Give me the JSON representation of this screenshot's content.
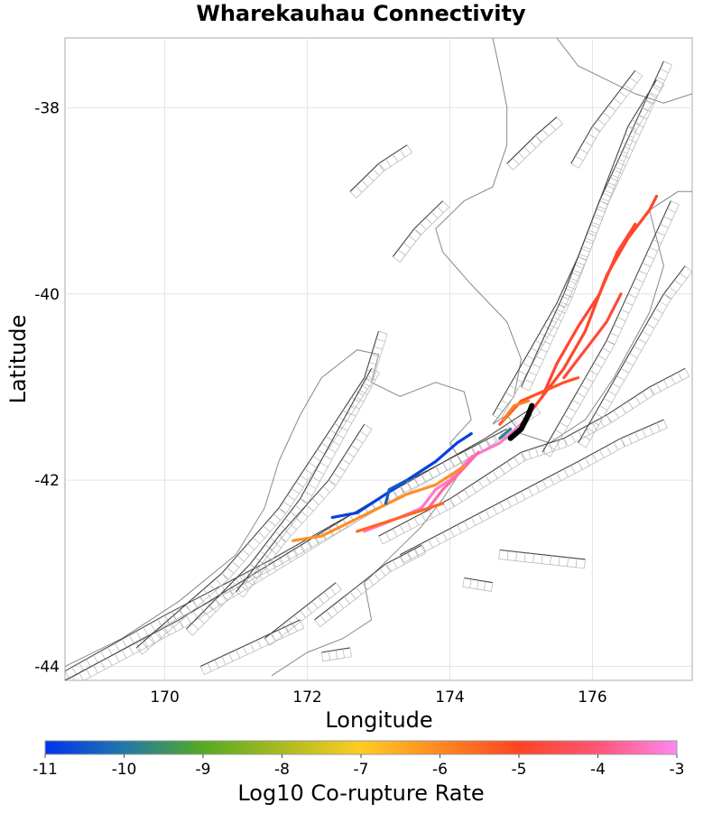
{
  "chart_data": {
    "type": "map",
    "title": "Wharekauhau Connectivity",
    "xlabel": "Longitude",
    "ylabel": "Latitude",
    "xlim": [
      168.6,
      177.4
    ],
    "ylim": [
      -44.15,
      -37.25
    ],
    "x_ticks": [
      170,
      172,
      174,
      176
    ],
    "y_ticks": [
      -38,
      -40,
      -42,
      -44
    ],
    "grid": true,
    "colorbar": {
      "label": "Log10 Co-rupture Rate",
      "min": -11,
      "max": -3,
      "ticks": [
        -11,
        -10,
        -9,
        -8,
        -7,
        -6,
        -5,
        -4,
        -3
      ],
      "colors": [
        "#0033ee",
        "#2277aa",
        "#55aa22",
        "#aabb22",
        "#ffcc22",
        "#ff8822",
        "#ff4422",
        "#ff5577",
        "#ff88ee"
      ]
    },
    "target_fault": {
      "name": "Wharekauhau",
      "color": "#000000",
      "points": [
        [
          174.85,
          -41.55
        ],
        [
          175.0,
          -41.45
        ],
        [
          175.1,
          -41.3
        ],
        [
          175.15,
          -41.2
        ]
      ]
    },
    "corupture_faults": [
      {
        "log10_rate": -3.3,
        "points": [
          [
            172.8,
            -42.55
          ],
          [
            173.3,
            -42.4
          ],
          [
            173.6,
            -42.3
          ],
          [
            173.8,
            -42.1
          ],
          [
            174.0,
            -42.0
          ],
          [
            174.3,
            -41.75
          ],
          [
            174.7,
            -41.6
          ],
          [
            175.0,
            -41.4
          ]
        ]
      },
      {
        "log10_rate": -3.6,
        "points": [
          [
            173.7,
            -42.3
          ],
          [
            173.9,
            -42.1
          ],
          [
            174.1,
            -41.95
          ],
          [
            174.4,
            -41.7
          ]
        ]
      },
      {
        "log10_rate": -4.9,
        "points": [
          [
            175.0,
            -41.4
          ],
          [
            175.3,
            -41.1
          ],
          [
            175.6,
            -40.8
          ],
          [
            175.9,
            -40.4
          ],
          [
            176.2,
            -39.8
          ],
          [
            176.5,
            -39.4
          ],
          [
            176.8,
            -39.1
          ],
          [
            176.9,
            -38.95
          ]
        ]
      },
      {
        "log10_rate": -4.8,
        "points": [
          [
            175.3,
            -41.1
          ],
          [
            175.5,
            -40.75
          ],
          [
            175.8,
            -40.35
          ],
          [
            176.1,
            -40.0
          ],
          [
            176.35,
            -39.55
          ],
          [
            176.6,
            -39.25
          ]
        ]
      },
      {
        "log10_rate": -4.7,
        "points": [
          [
            175.6,
            -40.9
          ],
          [
            175.9,
            -40.6
          ],
          [
            176.2,
            -40.3
          ],
          [
            176.4,
            -40.0
          ]
        ]
      },
      {
        "log10_rate": -5.2,
        "points": [
          [
            174.7,
            -41.4
          ],
          [
            175.0,
            -41.15
          ],
          [
            175.3,
            -41.05
          ],
          [
            175.6,
            -40.95
          ],
          [
            175.8,
            -40.9
          ]
        ]
      },
      {
        "log10_rate": -6.1,
        "points": [
          [
            171.8,
            -42.65
          ],
          [
            172.2,
            -42.6
          ],
          [
            172.6,
            -42.45
          ],
          [
            173.0,
            -42.3
          ],
          [
            173.4,
            -42.15
          ],
          [
            173.8,
            -42.05
          ],
          [
            174.2,
            -41.85
          ]
        ]
      },
      {
        "log10_rate": -5.5,
        "points": [
          [
            172.7,
            -42.55
          ],
          [
            173.1,
            -42.45
          ],
          [
            173.5,
            -42.35
          ],
          [
            173.9,
            -42.25
          ]
        ]
      },
      {
        "log10_rate": -5.9,
        "points": [
          [
            174.75,
            -41.35
          ],
          [
            174.9,
            -41.2
          ],
          [
            175.1,
            -41.15
          ]
        ]
      },
      {
        "log10_rate": -10.8,
        "points": [
          [
            172.35,
            -42.4
          ],
          [
            172.7,
            -42.35
          ],
          [
            173.0,
            -42.2
          ],
          [
            173.4,
            -42.0
          ],
          [
            173.8,
            -41.8
          ],
          [
            174.1,
            -41.6
          ],
          [
            174.3,
            -41.5
          ]
        ]
      },
      {
        "log10_rate": -10.4,
        "points": [
          [
            173.1,
            -42.25
          ],
          [
            173.15,
            -42.1
          ],
          [
            173.4,
            -42.0
          ]
        ]
      },
      {
        "log10_rate": -9.8,
        "points": [
          [
            174.7,
            -41.55
          ],
          [
            174.85,
            -41.45
          ]
        ]
      }
    ],
    "background_faults": [
      [
        [
          168.6,
          -44.05
        ],
        [
          170.0,
          -43.45
        ],
        [
          171.5,
          -42.85
        ],
        [
          173.0,
          -42.2
        ],
        [
          174.5,
          -41.55
        ],
        [
          175.2,
          -41.2
        ]
      ],
      [
        [
          168.6,
          -44.15
        ],
        [
          170.2,
          -43.5
        ],
        [
          171.8,
          -42.75
        ],
        [
          173.3,
          -42.05
        ],
        [
          174.8,
          -41.45
        ]
      ],
      [
        [
          169.6,
          -43.8
        ],
        [
          170.8,
          -43.0
        ],
        [
          171.6,
          -42.3
        ],
        [
          172.2,
          -41.6
        ],
        [
          172.8,
          -40.9
        ],
        [
          173.0,
          -40.4
        ]
      ],
      [
        [
          170.3,
          -43.6
        ],
        [
          171.2,
          -42.9
        ],
        [
          171.9,
          -42.2
        ],
        [
          172.4,
          -41.5
        ],
        [
          172.9,
          -40.8
        ]
      ],
      [
        [
          171.0,
          -43.2
        ],
        [
          171.6,
          -42.6
        ],
        [
          172.3,
          -42.0
        ],
        [
          172.8,
          -41.4
        ]
      ],
      [
        [
          173.0,
          -42.6
        ],
        [
          173.5,
          -42.4
        ],
        [
          174.0,
          -42.2
        ],
        [
          174.5,
          -41.95
        ],
        [
          175.0,
          -41.7
        ],
        [
          175.6,
          -41.55
        ],
        [
          176.2,
          -41.3
        ],
        [
          176.8,
          -41.0
        ],
        [
          177.3,
          -40.8
        ]
      ],
      [
        [
          173.3,
          -42.8
        ],
        [
          173.8,
          -42.6
        ],
        [
          174.3,
          -42.4
        ],
        [
          174.8,
          -42.2
        ],
        [
          175.3,
          -42.0
        ],
        [
          175.8,
          -41.8
        ],
        [
          176.4,
          -41.55
        ],
        [
          177.0,
          -41.35
        ]
      ],
      [
        [
          175.3,
          -41.7
        ],
        [
          175.6,
          -41.3
        ],
        [
          175.9,
          -40.9
        ],
        [
          176.2,
          -40.5
        ],
        [
          176.5,
          -40.0
        ],
        [
          176.8,
          -39.5
        ],
        [
          177.1,
          -39.0
        ]
      ],
      [
        [
          175.8,
          -41.6
        ],
        [
          176.1,
          -41.2
        ],
        [
          176.4,
          -40.8
        ],
        [
          176.7,
          -40.4
        ],
        [
          177.0,
          -40.0
        ],
        [
          177.3,
          -39.7
        ]
      ],
      [
        [
          174.6,
          -41.3
        ],
        [
          174.9,
          -40.9
        ],
        [
          175.2,
          -40.5
        ],
        [
          175.5,
          -40.1
        ],
        [
          175.8,
          -39.6
        ],
        [
          176.1,
          -39.0
        ],
        [
          176.4,
          -38.5
        ],
        [
          176.7,
          -38.0
        ],
        [
          177.0,
          -37.5
        ]
      ],
      [
        [
          175.0,
          -41.0
        ],
        [
          175.3,
          -40.5
        ],
        [
          175.6,
          -40.0
        ],
        [
          175.9,
          -39.4
        ],
        [
          176.2,
          -38.8
        ],
        [
          176.5,
          -38.2
        ],
        [
          176.9,
          -37.7
        ]
      ],
      [
        [
          175.7,
          -38.6
        ],
        [
          176.0,
          -38.2
        ],
        [
          176.3,
          -37.9
        ],
        [
          176.6,
          -37.6
        ]
      ],
      [
        [
          173.2,
          -39.6
        ],
        [
          173.5,
          -39.3
        ],
        [
          173.9,
          -39.0
        ]
      ],
      [
        [
          172.6,
          -38.9
        ],
        [
          173.0,
          -38.6
        ],
        [
          173.4,
          -38.4
        ]
      ],
      [
        [
          174.8,
          -38.6
        ],
        [
          175.2,
          -38.3
        ],
        [
          175.5,
          -38.1
        ]
      ],
      [
        [
          172.1,
          -43.5
        ],
        [
          172.6,
          -43.2
        ],
        [
          173.1,
          -42.9
        ],
        [
          173.6,
          -42.7
        ]
      ],
      [
        [
          171.4,
          -43.7
        ],
        [
          171.9,
          -43.4
        ],
        [
          172.4,
          -43.1
        ]
      ],
      [
        [
          170.5,
          -44.0
        ],
        [
          171.2,
          -43.75
        ],
        [
          171.9,
          -43.5
        ]
      ],
      [
        [
          174.7,
          -42.75
        ],
        [
          175.3,
          -42.8
        ],
        [
          175.9,
          -42.85
        ]
      ],
      [
        [
          174.2,
          -43.05
        ],
        [
          174.6,
          -43.1
        ]
      ],
      [
        [
          172.2,
          -43.85
        ],
        [
          172.6,
          -43.8
        ]
      ]
    ],
    "coastline": [
      [
        [
          168.6,
          -44.0
        ],
        [
          169.4,
          -43.7
        ],
        [
          170.2,
          -43.3
        ],
        [
          171.0,
          -42.8
        ],
        [
          171.4,
          -42.3
        ],
        [
          171.6,
          -41.8
        ],
        [
          171.9,
          -41.3
        ],
        [
          172.2,
          -40.9
        ],
        [
          172.7,
          -40.6
        ],
        [
          173.0,
          -40.65
        ],
        [
          172.9,
          -40.95
        ],
        [
          173.3,
          -41.1
        ],
        [
          173.8,
          -40.95
        ],
        [
          174.2,
          -41.05
        ],
        [
          174.3,
          -41.35
        ],
        [
          174.0,
          -41.6
        ],
        [
          174.2,
          -41.85
        ],
        [
          173.9,
          -42.2
        ],
        [
          173.6,
          -42.5
        ],
        [
          173.2,
          -42.8
        ],
        [
          172.8,
          -43.1
        ],
        [
          172.9,
          -43.5
        ],
        [
          172.5,
          -43.7
        ],
        [
          172.0,
          -43.85
        ],
        [
          171.5,
          -44.1
        ]
      ],
      [
        [
          174.6,
          -41.4
        ],
        [
          174.8,
          -41.3
        ],
        [
          175.0,
          -41.5
        ],
        [
          175.4,
          -41.6
        ],
        [
          175.9,
          -41.35
        ],
        [
          176.3,
          -40.9
        ],
        [
          176.8,
          -40.2
        ],
        [
          177.0,
          -39.7
        ],
        [
          176.9,
          -39.4
        ],
        [
          176.8,
          -39.1
        ],
        [
          177.2,
          -38.9
        ],
        [
          177.4,
          -38.9
        ]
      ],
      [
        [
          174.6,
          -41.4
        ],
        [
          174.9,
          -41.1
        ],
        [
          175.0,
          -40.7
        ],
        [
          174.8,
          -40.3
        ],
        [
          174.3,
          -39.9
        ],
        [
          173.9,
          -39.55
        ],
        [
          173.8,
          -39.3
        ],
        [
          174.2,
          -39.0
        ],
        [
          174.6,
          -38.85
        ],
        [
          174.8,
          -38.4
        ],
        [
          174.8,
          -38.0
        ],
        [
          174.7,
          -37.6
        ],
        [
          174.6,
          -37.25
        ]
      ],
      [
        [
          175.5,
          -37.25
        ],
        [
          175.8,
          -37.55
        ],
        [
          176.2,
          -37.7
        ],
        [
          176.6,
          -37.85
        ],
        [
          177.0,
          -37.95
        ],
        [
          177.4,
          -37.85
        ]
      ]
    ]
  }
}
